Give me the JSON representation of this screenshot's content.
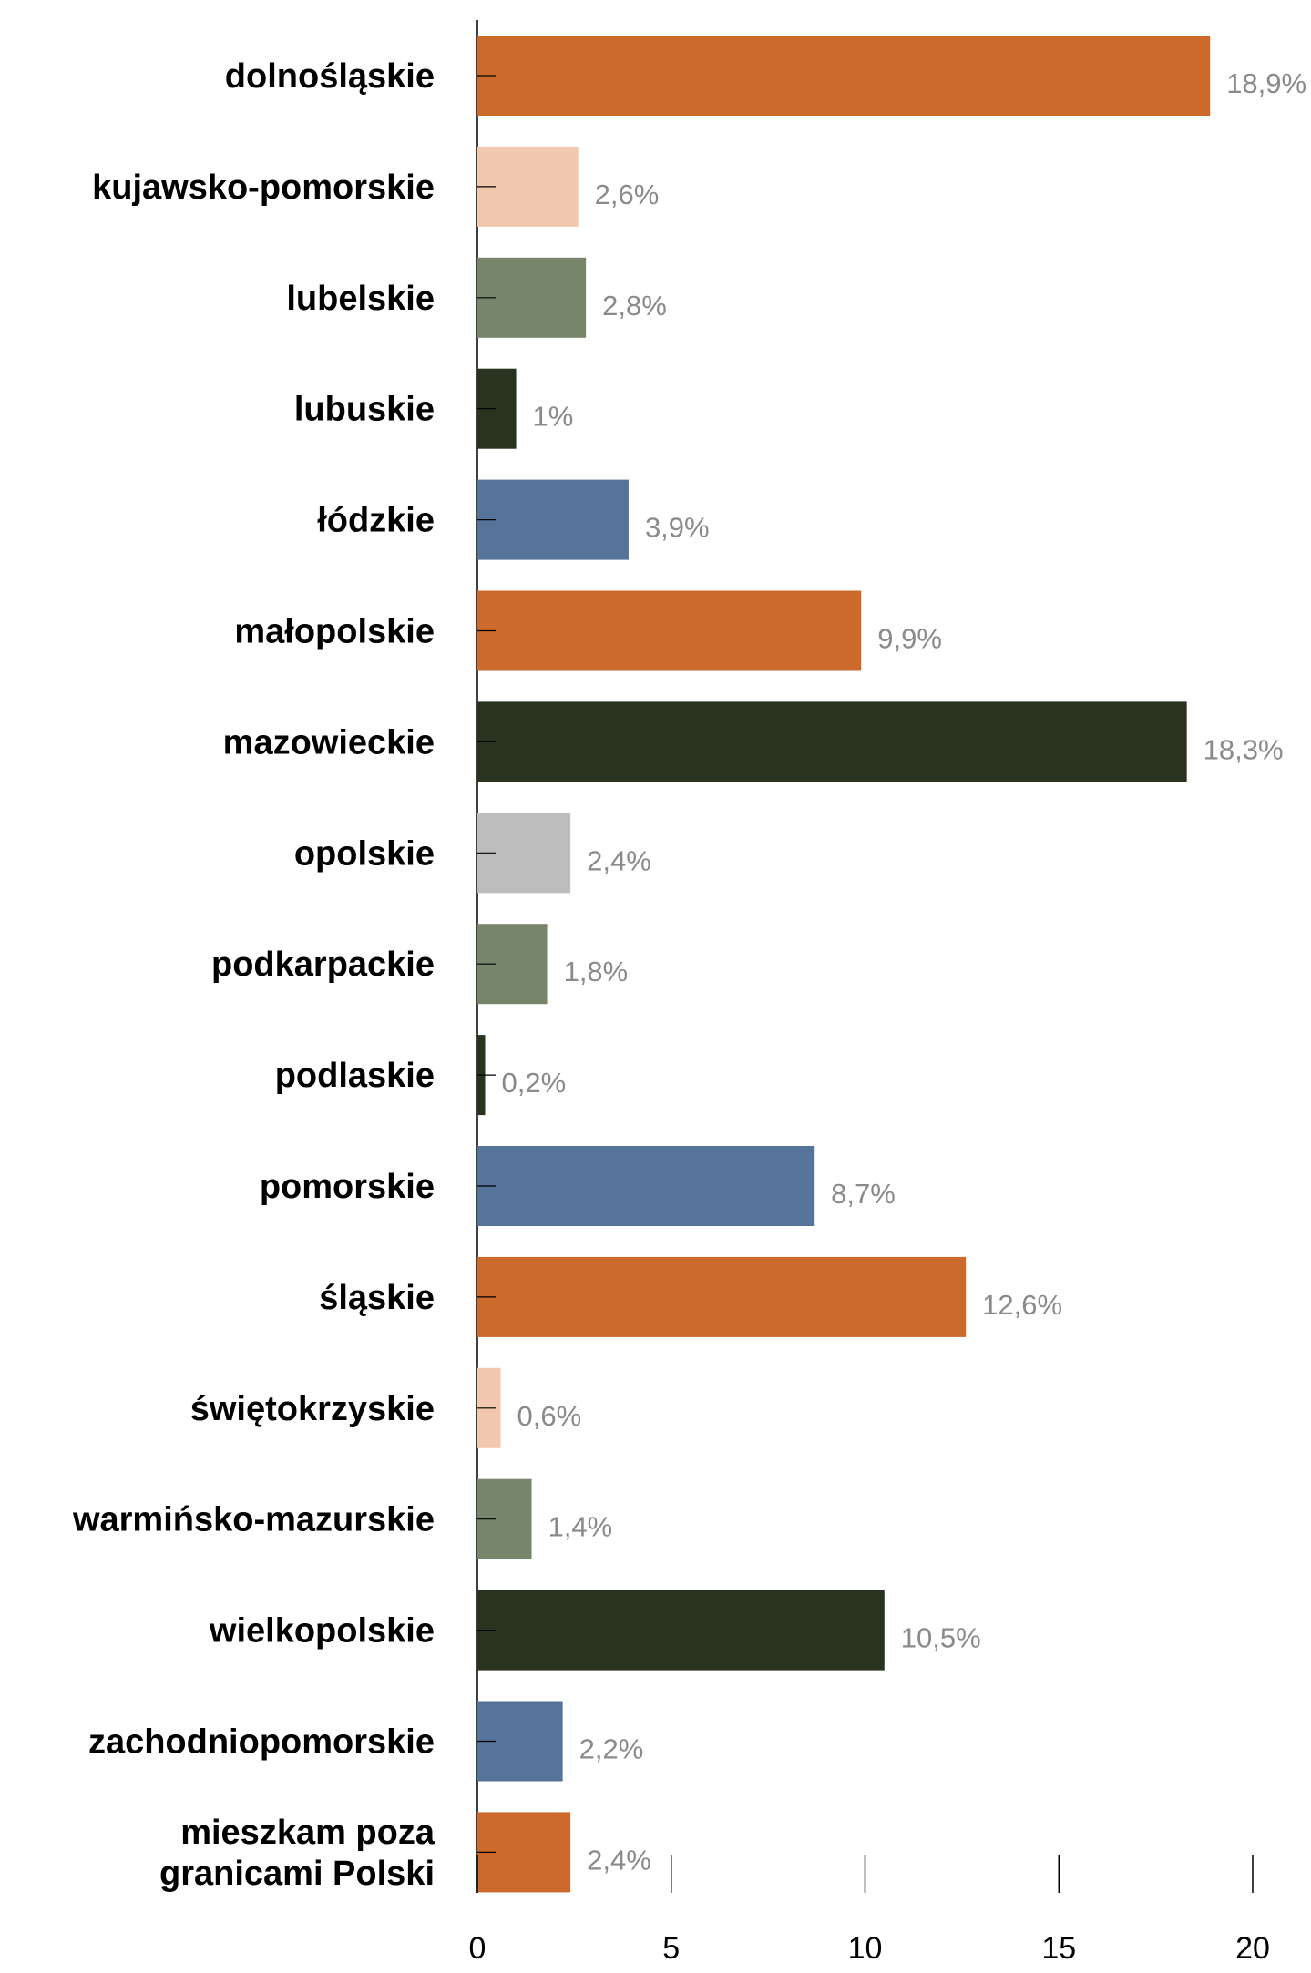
{
  "chart_data": {
    "type": "bar",
    "orientation": "horizontal",
    "title": "",
    "xlabel": "",
    "ylabel": "",
    "xlim": [
      0,
      20
    ],
    "x_ticks": [
      0,
      5,
      10,
      15,
      20
    ],
    "grid": false,
    "categories": [
      "dolnośląskie",
      "kujawsko-pomorskie",
      "lubelskie",
      "lubuskie",
      "łódzkie",
      "małopolskie",
      "mazowieckie",
      "opolskie",
      "podkarpackie",
      "podlaskie",
      "pomorskie",
      "śląskie",
      "świętokrzyskie",
      "warmińsko-mazurskie",
      "wielkopolskie",
      "zachodniopomorskie",
      [
        "mieszkam poza",
        "granicami Polski"
      ]
    ],
    "values": [
      18.9,
      2.6,
      2.8,
      1,
      3.9,
      9.9,
      18.3,
      2.4,
      1.8,
      0.2,
      8.7,
      12.6,
      0.6,
      1.4,
      10.5,
      2.2,
      2.4
    ],
    "value_labels": [
      "18,9%",
      "2,6%",
      "2,8%",
      "1%",
      "3,9%",
      "9,9%",
      "18,3%",
      "2,4%",
      "1,8%",
      "0,2%",
      "8,7%",
      "12,6%",
      "0,6%",
      "1,4%",
      "10,5%",
      "2,2%",
      "2,4%"
    ],
    "bar_colors": [
      "#cc6a2b",
      "#f2c8ae",
      "#77866a",
      "#28341f",
      "#56739a",
      "#cc6a2b",
      "#28341f",
      "#bdbdbd",
      "#77866a",
      "#28341f",
      "#56739a",
      "#cc6a2b",
      "#f2c8ae",
      "#77866a",
      "#28341f",
      "#56739a",
      "#cc6a2b"
    ]
  }
}
